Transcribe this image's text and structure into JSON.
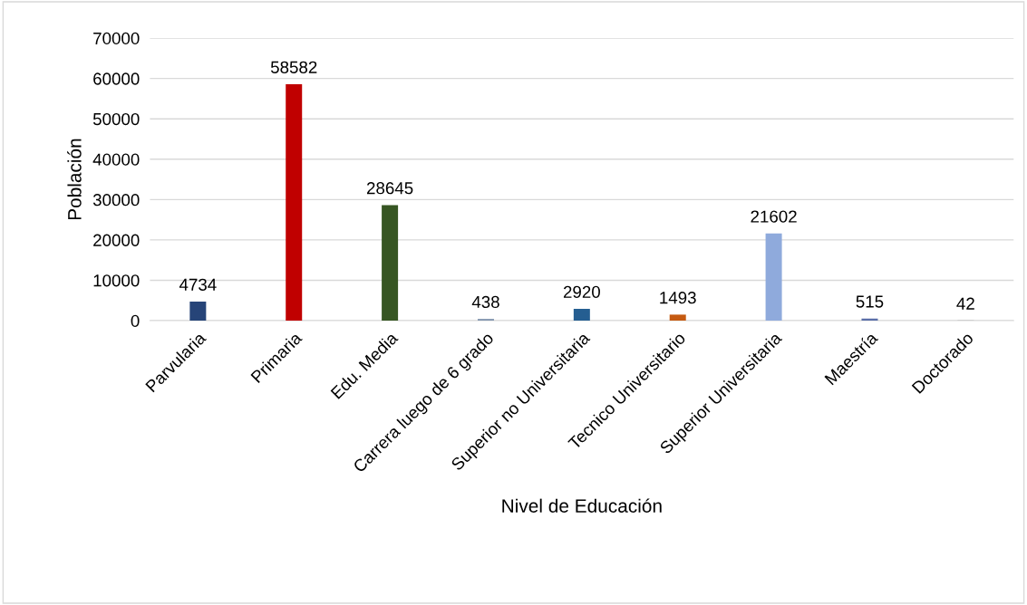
{
  "chart_data": {
    "type": "bar",
    "xlabel": "Nivel de Educación",
    "ylabel": "Población",
    "categories": [
      "Parvularia",
      "Primaria",
      "Edu. Media",
      "Carrera luego de 6 grado",
      "Superior no Universitaria",
      "Tecnico Universitario",
      "Superior Universitaria",
      "Maestría",
      "Doctorado"
    ],
    "values": [
      4734,
      58582,
      28645,
      438,
      2920,
      1493,
      21602,
      515,
      42
    ],
    "colors": [
      "#264478",
      "#c00000",
      "#375623",
      "#8497b0",
      "#255e91",
      "#c55a11",
      "#8faadc",
      "#5b6fa8",
      "#a5a5a5"
    ],
    "ylim": [
      0,
      70000
    ],
    "yticks": [
      0,
      10000,
      20000,
      30000,
      40000,
      50000,
      60000,
      70000
    ],
    "grid": "y",
    "data_labels": true
  }
}
